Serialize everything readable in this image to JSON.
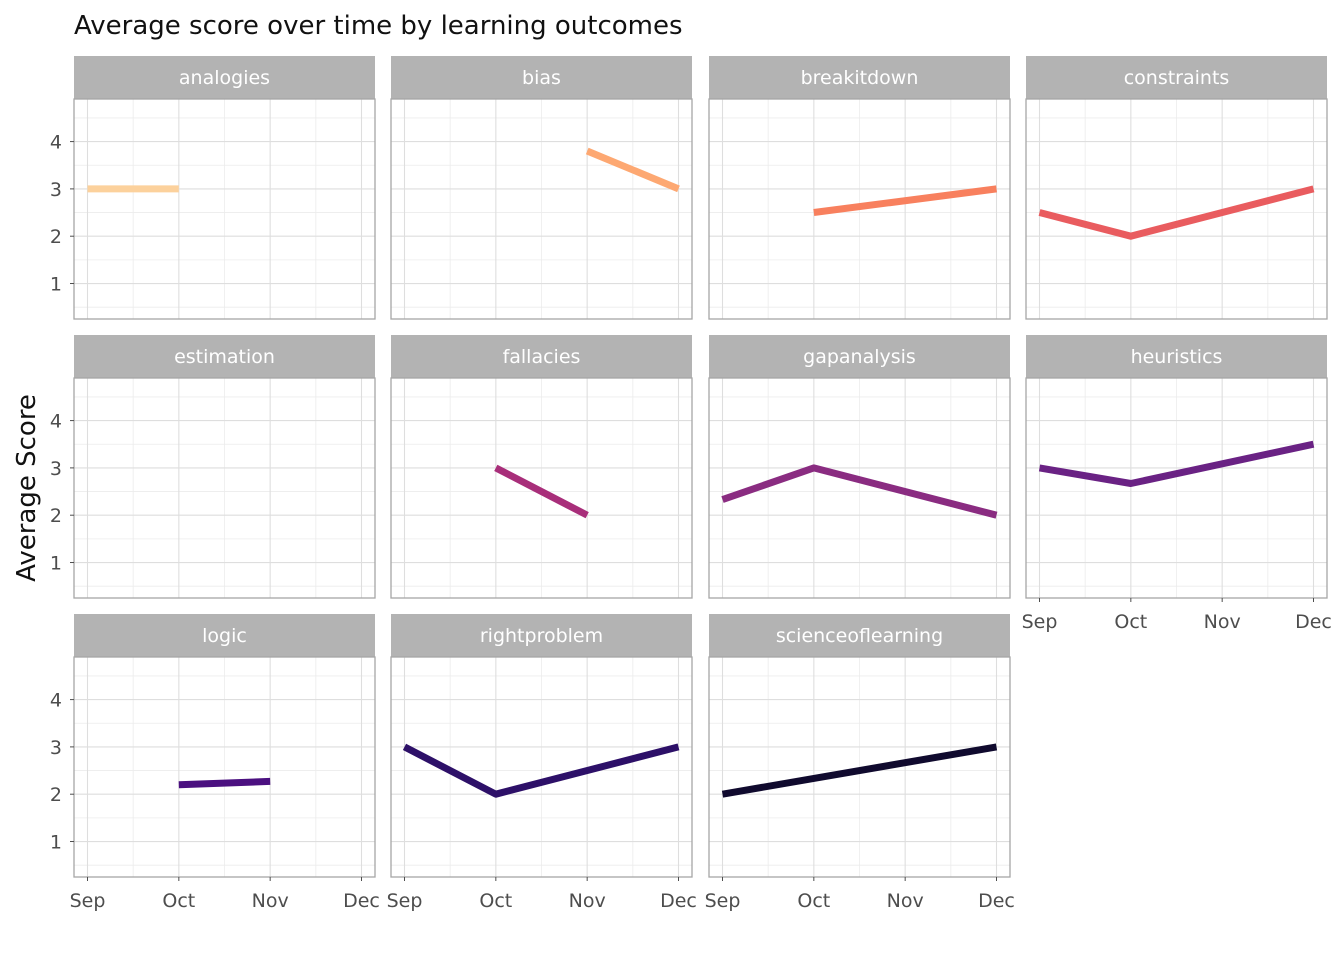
{
  "chart_data": {
    "type": "line",
    "title": "Average score over time by learning outcomes",
    "xlabel": "",
    "ylabel": "Average Score",
    "x_categories": [
      "Sep",
      "Oct",
      "Nov",
      "Dec"
    ],
    "y_ticks": [
      1,
      2,
      3,
      4
    ],
    "ylim": [
      0.25,
      4.9
    ],
    "grid": true,
    "legend": "none",
    "facets": [
      {
        "name": "analogies",
        "color": "#FCD19C",
        "points": [
          [
            "Sep",
            3.0
          ],
          [
            "Oct",
            3.0
          ]
        ]
      },
      {
        "name": "bias",
        "color": "#FDA872",
        "points": [
          [
            "Nov",
            3.8
          ],
          [
            "Dec",
            3.0
          ]
        ]
      },
      {
        "name": "breakitdown",
        "color": "#F8805E",
        "points": [
          [
            "Oct",
            2.5
          ],
          [
            "Dec",
            3.0
          ]
        ]
      },
      {
        "name": "constraints",
        "color": "#E95C5F",
        "points": [
          [
            "Sep",
            2.5
          ],
          [
            "Oct",
            2.0
          ],
          [
            "Dec",
            3.0
          ]
        ]
      },
      {
        "name": "estimation",
        "color": "#C83E73",
        "points": []
      },
      {
        "name": "fallacies",
        "color": "#A82E7A",
        "points": [
          [
            "Oct",
            3.0
          ],
          [
            "Nov",
            2.0
          ]
        ]
      },
      {
        "name": "gapanalysis",
        "color": "#8A2C81",
        "points": [
          [
            "Sep",
            2.33
          ],
          [
            "Oct",
            3.0
          ],
          [
            "Dec",
            2.0
          ]
        ]
      },
      {
        "name": "heuristics",
        "color": "#6A2284",
        "points": [
          [
            "Sep",
            3.0
          ],
          [
            "Oct",
            2.67
          ],
          [
            "Dec",
            3.5
          ]
        ]
      },
      {
        "name": "logic",
        "color": "#4B1080",
        "points": [
          [
            "Oct",
            2.2
          ],
          [
            "Nov",
            2.27
          ]
        ]
      },
      {
        "name": "rightproblem",
        "color": "#2D1068",
        "points": [
          [
            "Sep",
            3.0
          ],
          [
            "Oct",
            2.0
          ],
          [
            "Dec",
            3.0
          ]
        ]
      },
      {
        "name": "scienceoflearning",
        "color": "#100A2E",
        "points": [
          [
            "Sep",
            2.0
          ],
          [
            "Dec",
            3.0
          ]
        ]
      }
    ]
  }
}
